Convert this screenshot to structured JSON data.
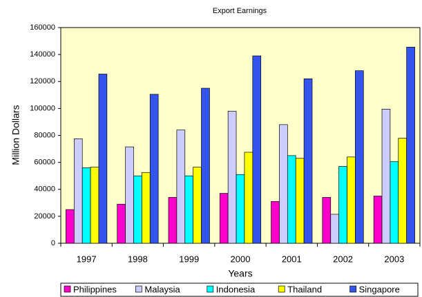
{
  "chart_data": {
    "type": "bar",
    "title": "Export Earnings",
    "x_label": "Years",
    "y_label": "Million Dollars",
    "categories": [
      "1997",
      "1998",
      "1999",
      "2000",
      "2001",
      "2002",
      "2003"
    ],
    "series": [
      {
        "name": "Philippines",
        "color": "#ff00cc",
        "values": [
          25000,
          29000,
          34000,
          37000,
          31000,
          34000,
          35000
        ]
      },
      {
        "name": "Malaysia",
        "color": "#ccccff",
        "values": [
          77500,
          71500,
          84000,
          98000,
          88000,
          21500,
          99500
        ]
      },
      {
        "name": "Indonesia",
        "color": "#00ffff",
        "values": [
          56000,
          50000,
          50000,
          51000,
          65000,
          57000,
          60500
        ]
      },
      {
        "name": "Thailand",
        "color": "#ffff00",
        "values": [
          56500,
          52500,
          56500,
          67500,
          63000,
          64000,
          78000
        ]
      },
      {
        "name": "Singapore",
        "color": "#3355ee",
        "values": [
          125500,
          110500,
          115000,
          139000,
          122000,
          128000,
          145500
        ]
      }
    ],
    "ylim": [
      0,
      160000
    ],
    "yticks": [
      0,
      20000,
      40000,
      60000,
      80000,
      100000,
      120000,
      140000,
      160000
    ],
    "grid": false,
    "legend": "bottom",
    "background": "#ffffcc"
  }
}
